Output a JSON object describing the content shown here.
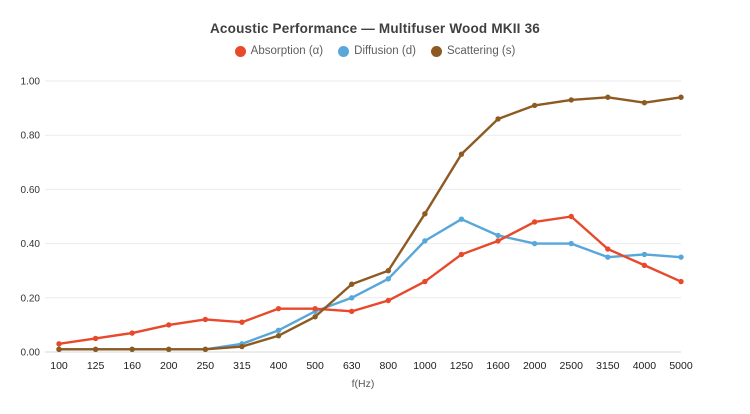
{
  "header": {
    "title": "Acoustic Performance — Multifuser Wood MKII 36"
  },
  "chart_data": {
    "type": "line",
    "title": "Acoustic Performance — Multifuser Wood MKII 36",
    "xlabel": "f(Hz)",
    "ylabel": "",
    "ylim": [
      0,
      1.0
    ],
    "grid": "horizontal",
    "legend_position": "top",
    "marker": "circle",
    "categories": [
      "100",
      "125",
      "160",
      "200",
      "250",
      "315",
      "400",
      "500",
      "630",
      "800",
      "1000",
      "1250",
      "1600",
      "2000",
      "2500",
      "3150",
      "4000",
      "5000"
    ],
    "y_ticks": {
      "values": [
        0,
        0.2,
        0.4,
        0.6,
        0.8,
        1.0
      ],
      "labels": [
        "0.00",
        "0.20",
        "0.40",
        "0.60",
        "0.80",
        "1.00"
      ]
    },
    "series": [
      {
        "name": "Absorption (α)",
        "color": "#e8492b",
        "values": [
          0.03,
          0.05,
          0.07,
          0.1,
          0.12,
          0.11,
          0.16,
          0.16,
          0.15,
          0.19,
          0.26,
          0.36,
          0.41,
          0.48,
          0.5,
          0.38,
          0.32,
          0.26
        ]
      },
      {
        "name": "Diffusion (d)",
        "color": "#57a7db",
        "values": [
          0.01,
          0.01,
          0.01,
          0.01,
          0.01,
          0.03,
          0.08,
          0.15,
          0.2,
          0.27,
          0.41,
          0.49,
          0.43,
          0.4,
          0.4,
          0.35,
          0.36,
          0.35
        ]
      },
      {
        "name": "Scattering (s)",
        "color": "#8d5a22",
        "values": [
          0.01,
          0.01,
          0.01,
          0.01,
          0.01,
          0.02,
          0.06,
          0.13,
          0.25,
          0.3,
          0.51,
          0.73,
          0.86,
          0.91,
          0.93,
          0.94,
          0.92,
          0.94
        ]
      }
    ]
  }
}
